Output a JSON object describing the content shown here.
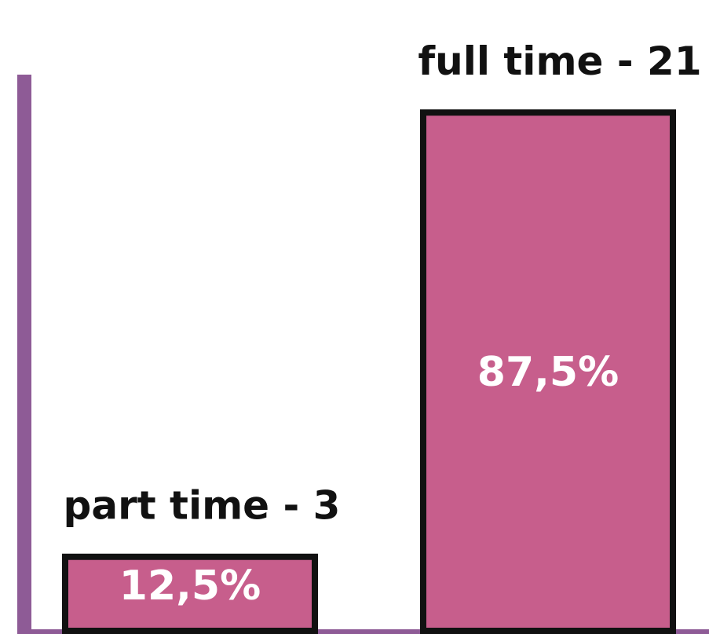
{
  "chart_data": {
    "type": "bar",
    "categories": [
      "part time - 3",
      "full time - 21"
    ],
    "values": [
      12.5,
      87.5
    ],
    "value_labels": [
      "12,5%",
      "87,5%"
    ],
    "color": "#c75e8c",
    "ylim": [
      0,
      100
    ]
  }
}
